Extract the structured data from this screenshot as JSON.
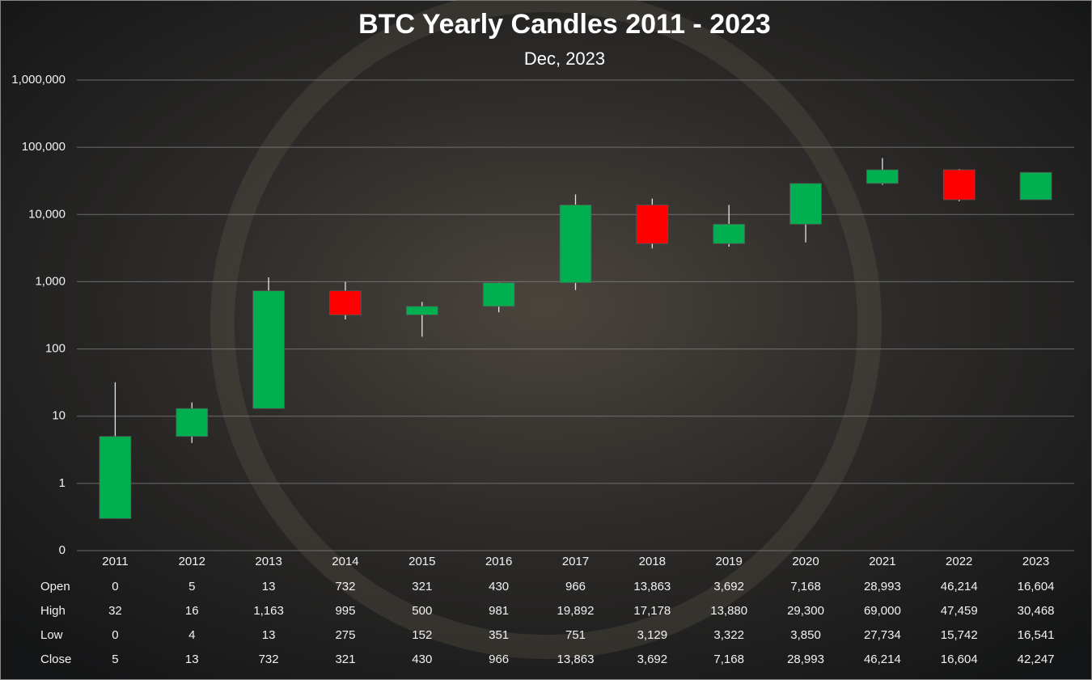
{
  "chart_data": {
    "type": "candlestick",
    "title": "BTC Yearly Candles 2011 - 2023",
    "subtitle": "Dec, 2023",
    "categories": [
      "2011",
      "2012",
      "2013",
      "2014",
      "2015",
      "2016",
      "2017",
      "2018",
      "2019",
      "2020",
      "2021",
      "2022",
      "2023"
    ],
    "series": [
      {
        "name": "Open",
        "values": [
          0.3,
          5,
          13,
          732,
          321,
          430,
          966,
          13863,
          3692,
          7168,
          28993,
          46214,
          16604
        ],
        "value_labels": [
          "0",
          "5",
          "13",
          "732",
          "321",
          "430",
          "966",
          "13,863",
          "3,692",
          "7,168",
          "28,993",
          "46,214",
          "16,604"
        ]
      },
      {
        "name": "High",
        "values": [
          32,
          16,
          1163,
          995,
          500,
          981,
          19892,
          17178,
          13880,
          29300,
          69000,
          47459,
          30468
        ],
        "value_labels": [
          "32",
          "16",
          "1,163",
          "995",
          "500",
          "981",
          "19,892",
          "17,178",
          "13,880",
          "29,300",
          "69,000",
          "47,459",
          "30,468"
        ]
      },
      {
        "name": "Low",
        "values": [
          0.3,
          4,
          13,
          275,
          152,
          351,
          751,
          3129,
          3322,
          3850,
          27734,
          15742,
          16541
        ],
        "value_labels": [
          "0",
          "4",
          "13",
          "275",
          "152",
          "351",
          "751",
          "3,129",
          "3,322",
          "3,850",
          "27,734",
          "15,742",
          "16,541"
        ]
      },
      {
        "name": "Close",
        "values": [
          5,
          13,
          732,
          321,
          430,
          966,
          13863,
          3692,
          7168,
          28993,
          46214,
          16604,
          42247
        ],
        "value_labels": [
          "5",
          "13",
          "732",
          "321",
          "430",
          "966",
          "13,863",
          "3,692",
          "7,168",
          "28,993",
          "46,214",
          "16,604",
          "42,247"
        ]
      }
    ],
    "up_color": "#00b050",
    "down_color": "#ff0000",
    "log_scale": true,
    "grid": true,
    "ylim": [
      0.1,
      1000000
    ],
    "yticks": [
      {
        "value": 0.1,
        "label": "0"
      },
      1,
      10,
      100,
      {
        "value": 1000,
        "label": "1,000"
      },
      {
        "value": 10000,
        "label": "10,000"
      },
      {
        "value": 100000,
        "label": "100,000"
      },
      {
        "value": 1000000,
        "label": "1,000,000"
      }
    ]
  }
}
